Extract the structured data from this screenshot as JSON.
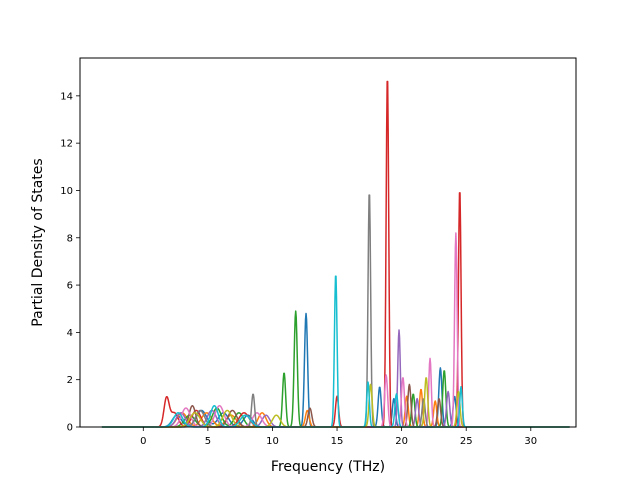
{
  "chart_data": {
    "type": "line",
    "xlabel": "Frequency (THz)",
    "ylabel": "Partial Density of States",
    "xlim": [
      -4.9,
      33.5
    ],
    "ylim": [
      0,
      15.6
    ],
    "x_ticks": [
      0,
      5,
      10,
      15,
      20,
      25,
      30
    ],
    "y_ticks": [
      0,
      2,
      4,
      6,
      8,
      10,
      12,
      14
    ],
    "x_range": [
      -3.2,
      33.0
    ],
    "grid": false,
    "legend": "none",
    "series": [
      {
        "color": "#1f77b4",
        "peaks": [
          [
            2.6,
            0.5,
            0.35
          ],
          [
            4.5,
            0.7,
            0.4
          ],
          [
            6.2,
            0.6,
            0.4
          ],
          [
            8.1,
            0.5,
            0.35
          ],
          [
            12.6,
            4.8,
            0.12
          ],
          [
            18.3,
            1.7,
            0.12
          ],
          [
            19.4,
            1.2,
            0.12
          ],
          [
            23.0,
            2.5,
            0.12
          ],
          [
            24.1,
            1.3,
            0.12
          ]
        ]
      },
      {
        "color": "#ff7f0e",
        "peaks": [
          [
            3.0,
            0.6,
            0.4
          ],
          [
            4.9,
            0.6,
            0.4
          ],
          [
            6.8,
            0.5,
            0.4
          ],
          [
            9.2,
            0.6,
            0.3
          ],
          [
            12.7,
            0.7,
            0.15
          ],
          [
            20.4,
            1.3,
            0.12
          ],
          [
            21.5,
            1.6,
            0.12
          ],
          [
            22.6,
            1.1,
            0.12
          ]
        ]
      },
      {
        "color": "#2ca02c",
        "peaks": [
          [
            3.6,
            0.5,
            0.4
          ],
          [
            5.7,
            0.8,
            0.35
          ],
          [
            7.4,
            0.6,
            0.35
          ],
          [
            10.9,
            2.3,
            0.12
          ],
          [
            11.8,
            4.9,
            0.12
          ],
          [
            20.9,
            1.4,
            0.12
          ],
          [
            23.3,
            2.4,
            0.12
          ]
        ]
      },
      {
        "color": "#d62728",
        "peaks": [
          [
            1.8,
            1.2,
            0.2
          ],
          [
            2.4,
            0.6,
            0.3
          ],
          [
            4.1,
            0.7,
            0.35
          ],
          [
            7.8,
            0.6,
            0.4
          ],
          [
            15.0,
            1.3,
            0.12
          ],
          [
            18.9,
            14.9,
            0.1
          ],
          [
            24.5,
            10.1,
            0.1
          ]
        ]
      },
      {
        "color": "#9467bd",
        "peaks": [
          [
            2.9,
            0.6,
            0.35
          ],
          [
            5.3,
            0.7,
            0.35
          ],
          [
            9.5,
            0.5,
            0.3
          ],
          [
            19.8,
            4.1,
            0.1
          ],
          [
            21.2,
            1.2,
            0.12
          ],
          [
            23.6,
            1.5,
            0.12
          ]
        ]
      },
      {
        "color": "#8c564b",
        "peaks": [
          [
            3.8,
            0.9,
            0.25
          ],
          [
            6.9,
            0.7,
            0.35
          ],
          [
            12.9,
            0.8,
            0.15
          ],
          [
            20.6,
            1.8,
            0.12
          ],
          [
            22.9,
            1.2,
            0.12
          ]
        ]
      },
      {
        "color": "#e377c2",
        "peaks": [
          [
            3.3,
            0.8,
            0.35
          ],
          [
            5.9,
            0.9,
            0.35
          ],
          [
            8.8,
            0.6,
            0.35
          ],
          [
            18.8,
            2.2,
            0.12
          ],
          [
            20.1,
            2.1,
            0.12
          ],
          [
            22.2,
            2.9,
            0.1
          ],
          [
            24.2,
            8.2,
            0.1
          ]
        ]
      },
      {
        "color": "#7f7f7f",
        "peaks": [
          [
            8.5,
            1.4,
            0.12
          ],
          [
            4.4,
            0.7,
            0.35
          ],
          [
            17.5,
            10.0,
            0.1
          ],
          [
            21.7,
            1.2,
            0.12
          ]
        ]
      },
      {
        "color": "#bcbd22",
        "peaks": [
          [
            4.0,
            0.6,
            0.4
          ],
          [
            6.5,
            0.7,
            0.35
          ],
          [
            10.3,
            0.5,
            0.3
          ],
          [
            17.6,
            1.8,
            0.12
          ],
          [
            21.9,
            2.1,
            0.12
          ],
          [
            24.4,
            1.5,
            0.12
          ]
        ]
      },
      {
        "color": "#17becf",
        "peaks": [
          [
            2.7,
            0.6,
            0.35
          ],
          [
            5.5,
            0.9,
            0.3
          ],
          [
            7.9,
            0.5,
            0.4
          ],
          [
            14.9,
            6.5,
            0.1
          ],
          [
            17.4,
            1.9,
            0.1
          ],
          [
            19.6,
            1.4,
            0.12
          ],
          [
            24.6,
            1.7,
            0.1
          ]
        ]
      }
    ]
  }
}
